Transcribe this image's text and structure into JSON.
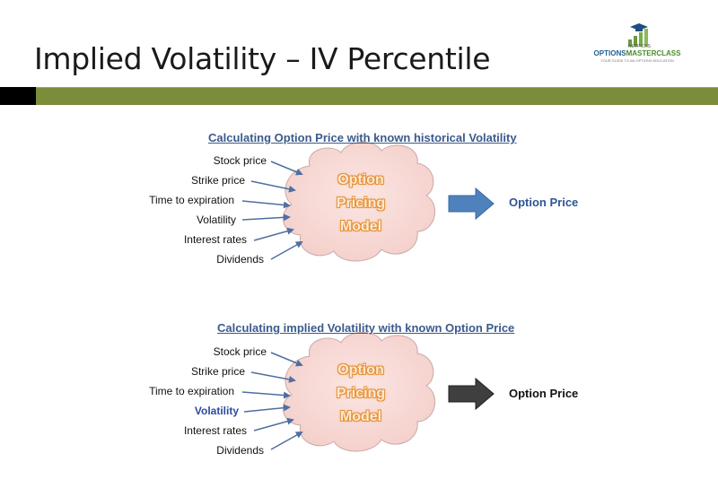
{
  "title": "Implied Volatility – IV Percentile",
  "logo": {
    "small": "NETPICKS",
    "brand_a": "OPTIONS",
    "brand_b": "MASTERCLASS",
    "tagline": "YOUR GUIDE TO AN OPTIONS EDUCATION"
  },
  "diagrams": [
    {
      "heading": "Calculating Option Price with known historical Volatility",
      "inputs": [
        "Stock price",
        "Strike price",
        "Time to expiration",
        "Volatility",
        "Interest rates",
        "Dividends"
      ],
      "model_lines": [
        "Option",
        "Pricing",
        "Model"
      ],
      "output": "Option Price"
    },
    {
      "heading": "Calculating implied Volatility with known Option Price",
      "inputs": [
        "Stock price",
        "Strike price",
        "Time to expiration",
        "Volatility",
        "Interest rates",
        "Dividends"
      ],
      "model_lines": [
        "Option",
        "Pricing",
        "Model"
      ],
      "output": "Option Price"
    }
  ],
  "colors": {
    "green_bar": "#7b8c3a",
    "cloud_fill": "#f8dcd8",
    "cloud_stroke": "#c9a8a8",
    "arrow_blue": "#4f81bd",
    "arrow_dark": "#3f3f3f",
    "heading_blue": "#3b5a8c",
    "model_text_outline": "#e6913a"
  },
  "icons": [
    "graduation-cap-icon",
    "bar-chart-icon",
    "arrow-icon",
    "cloud-shape"
  ]
}
